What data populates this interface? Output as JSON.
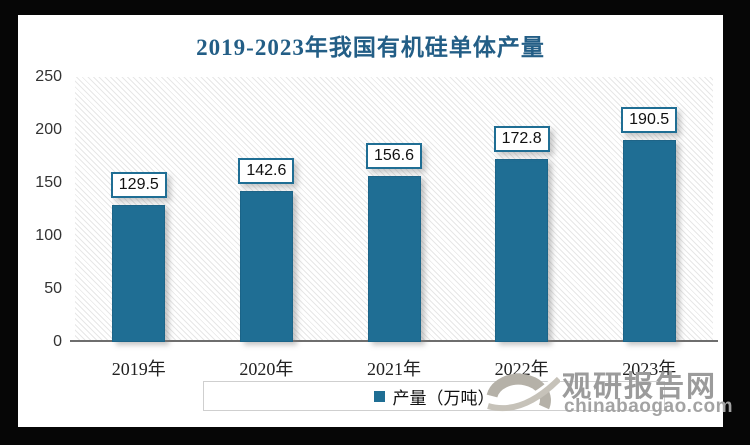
{
  "title": "2019-2023年我国有机硅单体产量",
  "colors": {
    "frame": "#060606",
    "canvas_bg": "#ffffff",
    "title_text": "#235e86",
    "bar_fill": "#1f6e94",
    "label_box_border": "#1f6e94",
    "axis_line": "#6e6e6e",
    "tick_text": "#333333",
    "legend_border": "#cfcfcf",
    "watermark_gray": "#9b9b9b"
  },
  "chart_data": {
    "type": "bar",
    "title": "2019-2023年我国有机硅单体产量",
    "categories": [
      "2019年",
      "2020年",
      "2021年",
      "2022年",
      "2023年"
    ],
    "values": [
      129.5,
      142.6,
      156.6,
      172.8,
      190.5
    ],
    "series_name": "产量（万吨）",
    "xlabel": "",
    "ylabel": "",
    "ylim": [
      0,
      250
    ],
    "yticks": [
      0,
      50,
      100,
      150,
      200,
      250
    ],
    "grid": false,
    "plot_background": "light-diagonal-hatch",
    "data_labels": "boxed above bars",
    "legend_position": "bottom"
  },
  "legend": {
    "label": "产量（万吨）"
  },
  "watermark": {
    "site_name": "观研报告网",
    "site_url": "chinabaogao.com",
    "logo": "swirl-logo"
  }
}
